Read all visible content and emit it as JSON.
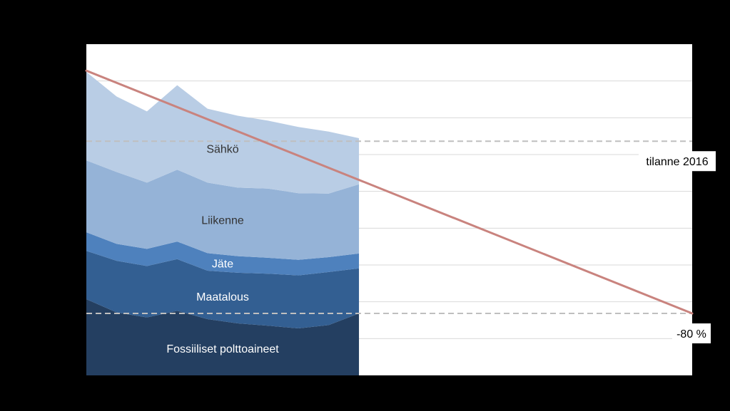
{
  "chart_data": {
    "type": "area",
    "stacked": true,
    "title": "",
    "xlabel": "",
    "ylabel": "",
    "ylim": [
      0,
      100
    ],
    "grid": true,
    "x": [
      1990,
      1993,
      1996,
      1999,
      2002,
      2005,
      2008,
      2011,
      2014,
      2017
    ],
    "series": [
      {
        "name": "Fossiiliset polttoaineet",
        "color": "#243F61",
        "values": [
          23.0,
          19.0,
          17.5,
          19.5,
          17.0,
          15.7,
          15.0,
          14.2,
          15.2,
          18.7
        ]
      },
      {
        "name": "Maatalous",
        "color": "#335F92",
        "values": [
          14.6,
          15.6,
          15.5,
          15.6,
          14.6,
          15.3,
          15.7,
          16.0,
          16.0,
          13.6
        ]
      },
      {
        "name": "Jäte",
        "color": "#4E81BD",
        "values": [
          5.6,
          5.1,
          5.2,
          5.3,
          5.3,
          5.0,
          4.8,
          4.7,
          4.5,
          4.5
        ]
      },
      {
        "name": "Liikenne",
        "color": "#95B3D7",
        "values": [
          21.7,
          21.7,
          20.0,
          21.7,
          21.3,
          20.7,
          20.9,
          20.1,
          19.2,
          20.9
        ]
      },
      {
        "name": "Sähkö",
        "color": "#B9CDE5",
        "values": [
          26.7,
          22.8,
          21.5,
          25.5,
          22.3,
          21.7,
          20.5,
          20.0,
          18.7,
          13.9
        ]
      }
    ],
    "trend_line": {
      "x": [
        1990,
        2050
      ],
      "y": [
        92,
        18.7
      ],
      "color": "#C9837E"
    },
    "reference_lines": [
      {
        "label": "tilanne 2016",
        "y": 70.7
      },
      {
        "label": "-80 %",
        "y": 18.7
      }
    ],
    "x_range": [
      1990,
      2050
    ]
  }
}
